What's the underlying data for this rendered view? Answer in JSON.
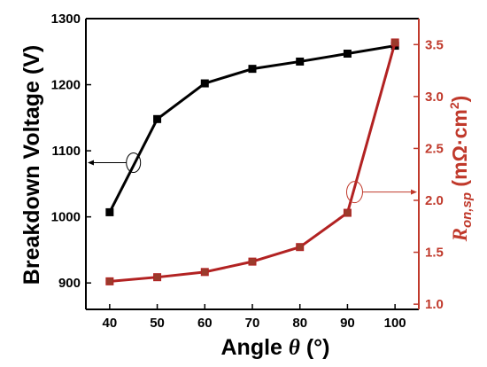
{
  "chart_data": {
    "type": "line",
    "x": [
      40,
      50,
      60,
      70,
      80,
      90,
      100
    ],
    "xlim": [
      35,
      105
    ],
    "xticks": [
      "40",
      "50",
      "60",
      "70",
      "80",
      "90",
      "100"
    ],
    "xlabel": {
      "main": "Angle ",
      "symbol": "θ",
      "unit": " (°)"
    },
    "ylabel_left": "Breakdown Voltage (V)",
    "ylim_left": [
      860,
      1300
    ],
    "yticks_left": [
      "900",
      "1000",
      "1100",
      "1200",
      "1300"
    ],
    "ylabel_right": {
      "symbol": "R",
      "sub": "on,sp",
      "unit_open": " (mΩ·cm",
      "unit_sup": "2",
      "unit_close": ")"
    },
    "ylim_right": [
      0.95,
      3.75
    ],
    "yticks_right": [
      "1.0",
      "1.5",
      "2.0",
      "2.5",
      "3.0",
      "3.5"
    ],
    "right_axis_color": "#c0392b",
    "series": [
      {
        "axis": "left",
        "color": "#000000",
        "marker": "square",
        "values": [
          1007,
          1148,
          1202,
          1224,
          1235,
          1247,
          1259
        ]
      },
      {
        "axis": "right",
        "color": "#b22222",
        "marker": "square",
        "marker_fill": "#9b3b2b",
        "values": [
          1.22,
          1.26,
          1.31,
          1.41,
          1.55,
          1.88,
          3.52
        ]
      }
    ],
    "annotations": [
      {
        "type": "ellipse-arrow",
        "points_to": "left",
        "at_x": 45,
        "at_y_left": 1082
      },
      {
        "type": "ellipse-arrow",
        "points_to": "right",
        "at_x": 91.5,
        "at_y_right": 2.08
      }
    ],
    "grid": false,
    "legend": "none"
  }
}
